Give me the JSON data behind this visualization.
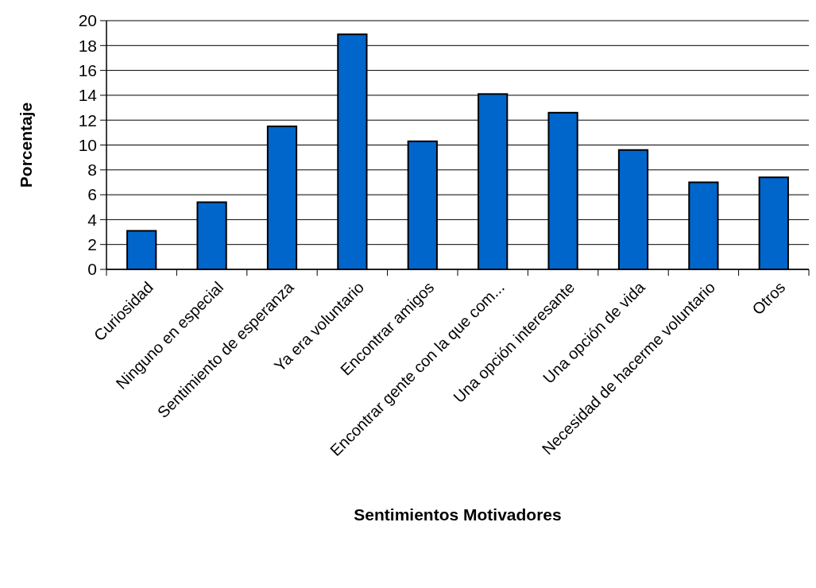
{
  "chart_data": {
    "type": "bar",
    "xlabel": "Sentimientos Motivadores",
    "ylabel": "Porcentaje",
    "categories": [
      "Curiosidad",
      "Ninguno en especial",
      "Sentimiento de esperanza",
      "Ya era voluntario",
      "Encontrar amigos",
      "Encontrar gente con la que com...",
      "Una opción interesante",
      "Una opción de vida",
      "Necesidad de hacerme voluntario",
      "Otros"
    ],
    "values": [
      3.1,
      5.4,
      11.5,
      18.9,
      10.3,
      14.1,
      12.6,
      9.6,
      7.0,
      7.4
    ],
    "color": "#0066cc",
    "ylim": [
      0,
      20
    ],
    "yticks": [
      0,
      2,
      4,
      6,
      8,
      10,
      12,
      14,
      16,
      18,
      20
    ],
    "grid": "y"
  }
}
